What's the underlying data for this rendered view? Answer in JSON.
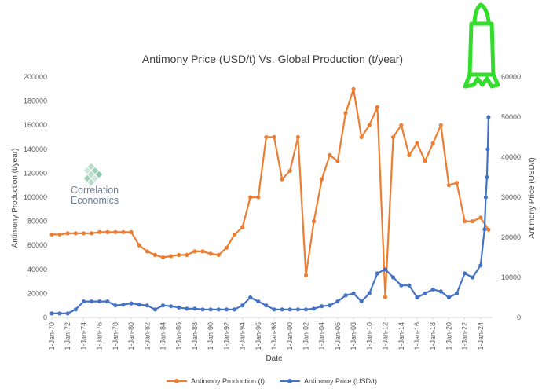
{
  "chart_data": {
    "type": "line",
    "title": "Antimony Price (USD/t) Vs. Global Production (t/year)",
    "xlabel": "Date",
    "ylabel_left": "Antimony Production (t/year)",
    "ylabel_right": "Antimony Price (USD/t)",
    "ylim_left": [
      0,
      200000
    ],
    "ylim_right": [
      0,
      60000
    ],
    "yticks_left": [
      "0",
      "20000",
      "40000",
      "60000",
      "80000",
      "100000",
      "120000",
      "140000",
      "160000",
      "180000",
      "200000"
    ],
    "yticks_right": [
      "0",
      "10000",
      "20000",
      "30000",
      "40000",
      "50000",
      "60000"
    ],
    "xlim": [
      1970,
      2025.5
    ],
    "xticks": [
      "1-Jan-70",
      "1-Jan-72",
      "1-Jan-74",
      "1-Jan-76",
      "1-Jan-78",
      "1-Jan-80",
      "1-Jan-82",
      "1-Jan-84",
      "1-Jan-86",
      "1-Jan-88",
      "1-Jan-90",
      "1-Jan-92",
      "1-Jan-94",
      "1-Jan-96",
      "1-Jan-98",
      "1-Jan-00",
      "1-Jan-02",
      "1-Jan-04",
      "1-Jan-06",
      "1-Jan-08",
      "1-Jan-10",
      "1-Jan-12",
      "1-Jan-14",
      "1-Jan-16",
      "1-Jan-18",
      "1-Jan-20",
      "1-Jan-22",
      "1-Jan-24"
    ],
    "xtick_years": [
      1970,
      1972,
      1974,
      1976,
      1978,
      1980,
      1982,
      1984,
      1986,
      1988,
      1990,
      1992,
      1994,
      1996,
      1998,
      2000,
      2002,
      2004,
      2006,
      2008,
      2010,
      2012,
      2014,
      2016,
      2018,
      2020,
      2022,
      2024
    ],
    "legend_position": "bottom",
    "grid": false,
    "series": [
      {
        "name": "Antimony Production (t)",
        "axis": "left",
        "color": "#ED7D31",
        "x": [
          1970,
          1971,
          1972,
          1973,
          1974,
          1975,
          1976,
          1977,
          1978,
          1979,
          1980,
          1981,
          1982,
          1983,
          1984,
          1985,
          1986,
          1987,
          1988,
          1989,
          1990,
          1991,
          1992,
          1993,
          1994,
          1995,
          1996,
          1997,
          1998,
          1999,
          2000,
          2001,
          2002,
          2003,
          2004,
          2005,
          2006,
          2007,
          2008,
          2009,
          2010,
          2011,
          2012,
          2013,
          2014,
          2015,
          2016,
          2017,
          2018,
          2019,
          2020,
          2021,
          2022,
          2023,
          2024,
          2025
        ],
        "values": [
          69000,
          69000,
          70000,
          70000,
          70000,
          70000,
          71000,
          71000,
          71000,
          71000,
          71000,
          60000,
          55000,
          52000,
          50000,
          51000,
          52000,
          52000,
          55000,
          55000,
          53000,
          52000,
          58000,
          69000,
          75000,
          100000,
          100000,
          150000,
          150000,
          115000,
          122000,
          150000,
          35000,
          80000,
          115000,
          135000,
          130000,
          170000,
          190000,
          150000,
          160000,
          175000,
          17000,
          150000,
          160000,
          135000,
          145000,
          130000,
          145000,
          160000,
          110000,
          112000,
          80000,
          80000,
          83000,
          73000
        ]
      },
      {
        "name": "Antimony Price (USD/t)",
        "axis": "right",
        "color": "#4472C4",
        "x": [
          1970,
          1971,
          1972,
          1973,
          1974,
          1975,
          1976,
          1977,
          1978,
          1979,
          1980,
          1981,
          1982,
          1983,
          1984,
          1985,
          1986,
          1987,
          1988,
          1989,
          1990,
          1991,
          1992,
          1993,
          1994,
          1995,
          1996,
          1997,
          1998,
          1999,
          2000,
          2001,
          2002,
          2003,
          2004,
          2005,
          2006,
          2007,
          2008,
          2009,
          2010,
          2011,
          2012,
          2013,
          2014,
          2015,
          2016,
          2017,
          2018,
          2019,
          2020,
          2021,
          2022,
          2023,
          2024,
          2024.5,
          2024.65,
          2024.8,
          2024.9,
          2025
        ],
        "values": [
          1000,
          1000,
          1000,
          2000,
          4000,
          4000,
          4000,
          4000,
          3000,
          3200,
          3500,
          3200,
          3000,
          2000,
          3000,
          2800,
          2500,
          2200,
          2200,
          2000,
          2000,
          2000,
          2000,
          2000,
          3000,
          5000,
          4000,
          3000,
          2000,
          2000,
          2000,
          2000,
          2000,
          2200,
          2800,
          3000,
          4000,
          5500,
          6000,
          4000,
          6000,
          11000,
          12000,
          10000,
          8000,
          8000,
          5000,
          6000,
          7000,
          6500,
          5000,
          6000,
          11000,
          10000,
          13000,
          22000,
          30000,
          35000,
          42000,
          50000
        ]
      }
    ]
  },
  "watermark": {
    "line1": "Correlation",
    "line2": "Economics"
  }
}
